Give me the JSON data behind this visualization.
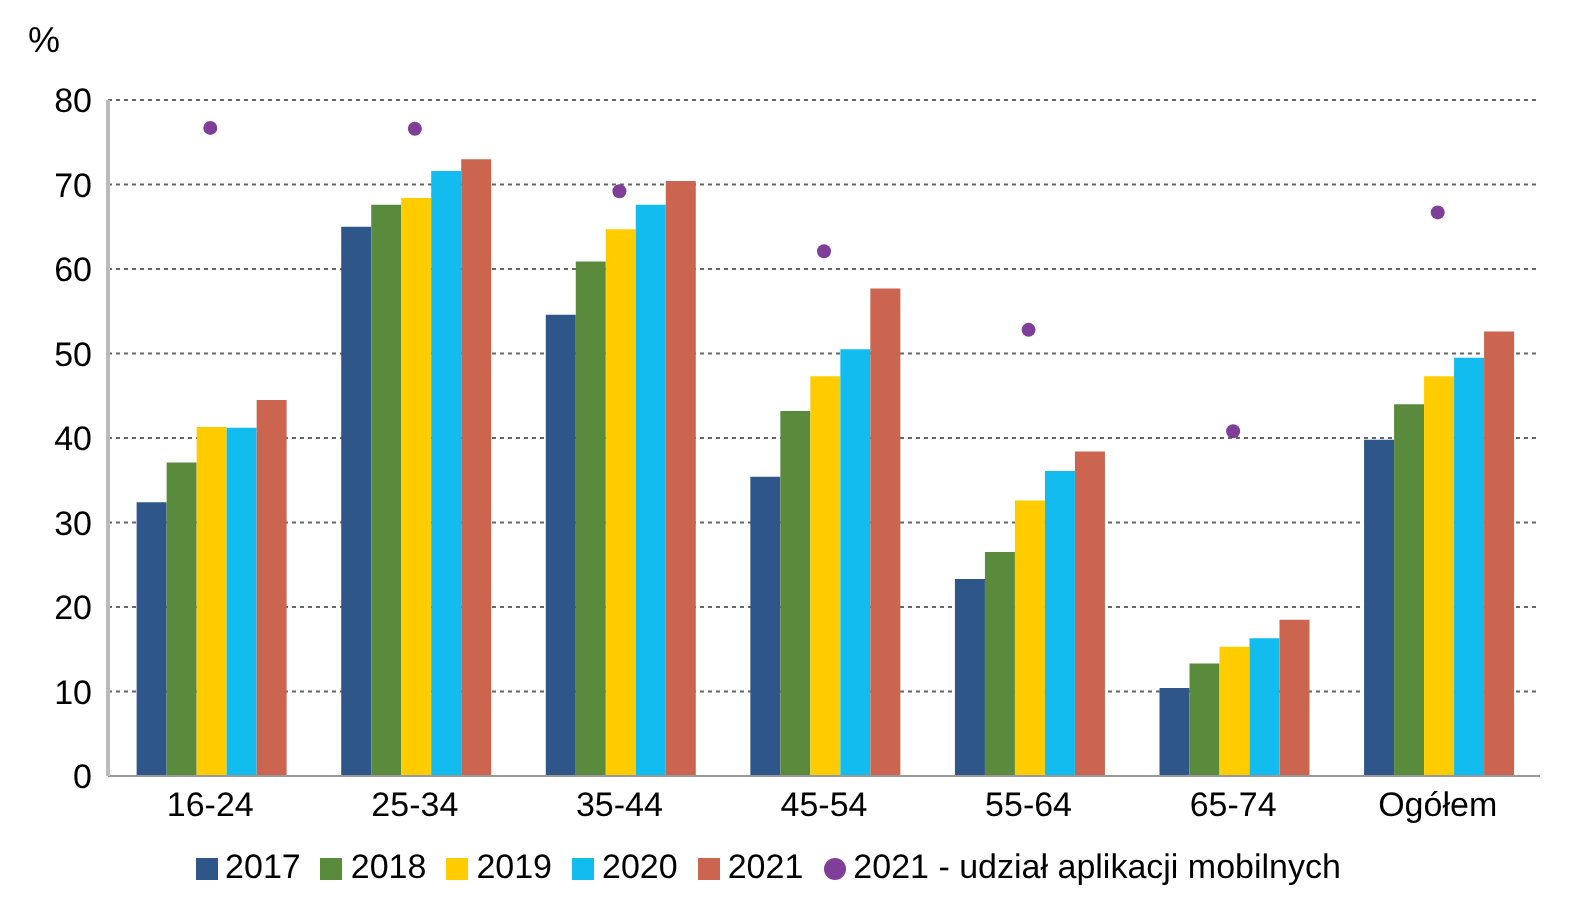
{
  "chart_data": {
    "type": "bar",
    "ylabel": "%",
    "categories": [
      "16-24",
      "25-34",
      "35-44",
      "45-54",
      "55-64",
      "65-74",
      "Ogółem"
    ],
    "series": [
      {
        "name": "2017",
        "color": "#2e5689",
        "values": [
          32.4,
          65.0,
          54.6,
          35.4,
          23.3,
          10.4,
          39.8
        ]
      },
      {
        "name": "2018",
        "color": "#5a8a3c",
        "values": [
          37.1,
          67.6,
          60.9,
          43.2,
          26.5,
          13.3,
          44.0
        ]
      },
      {
        "name": "2019",
        "color": "#ffcc00",
        "values": [
          41.3,
          68.4,
          64.7,
          47.3,
          32.6,
          15.3,
          47.3
        ]
      },
      {
        "name": "2020",
        "color": "#12bcee",
        "values": [
          41.2,
          71.6,
          67.6,
          50.5,
          36.1,
          16.3,
          49.5
        ]
      },
      {
        "name": "2021",
        "color": "#cc654f",
        "values": [
          44.5,
          73.0,
          70.4,
          57.7,
          38.4,
          18.5,
          52.6
        ]
      },
      {
        "name": "2021 - udział aplikacji mobilnych",
        "type": "scatter",
        "color": "#7f3f98",
        "values": [
          76.7,
          76.6,
          69.2,
          62.1,
          52.8,
          40.8,
          66.7
        ]
      }
    ],
    "ylim": [
      0,
      80
    ],
    "yticks": [
      0,
      10,
      20,
      30,
      40,
      50,
      60,
      70,
      80
    ],
    "grid": "y",
    "legend": "bottom",
    "marker": "circle"
  }
}
